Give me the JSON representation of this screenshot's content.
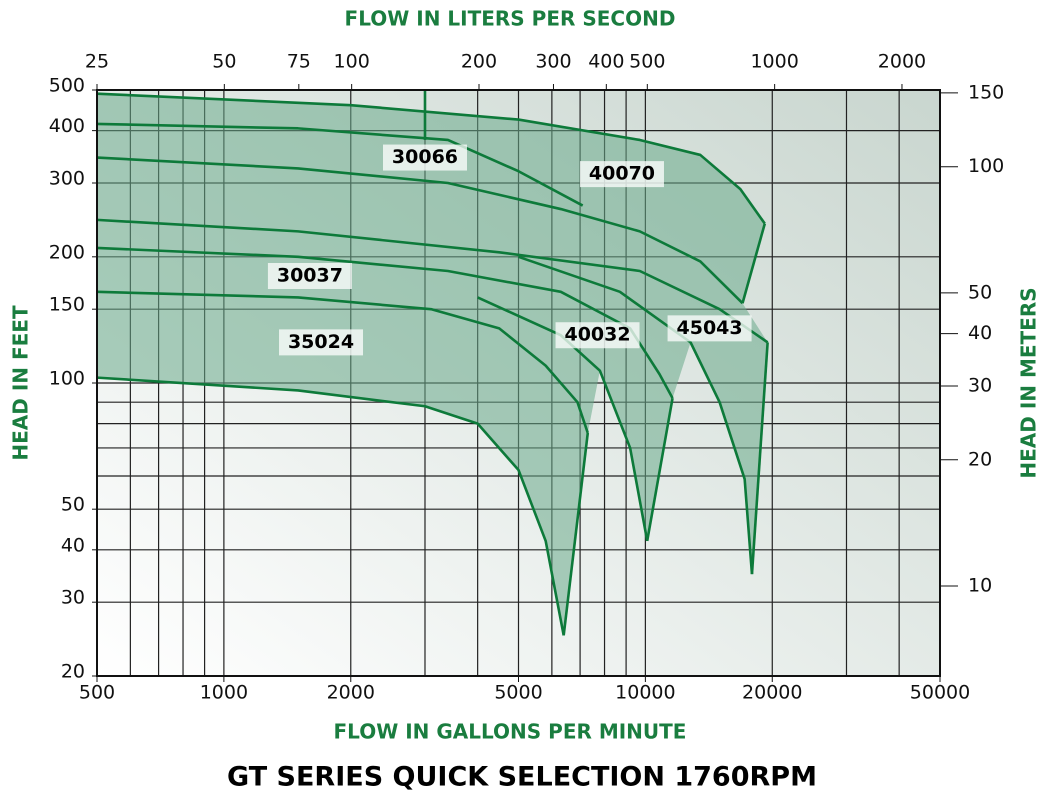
{
  "chart_data": {
    "type": "curves",
    "title": "GT SERIES QUICK SELECTION 1760RPM",
    "xlabel": "FLOW IN GALLONS PER MINUTE",
    "x2label": "FLOW IN LITERS PER SECOND",
    "ylabel": "HEAD IN FEET",
    "y2label": "HEAD IN METERS",
    "xscale": "log",
    "yscale": "log",
    "xlim": [
      500,
      50000
    ],
    "xticks": [
      500,
      1000,
      2000,
      5000,
      10000,
      20000,
      50000
    ],
    "x2lim": [
      25,
      2460
    ],
    "x2ticks": [
      25,
      50,
      75,
      100,
      200,
      300,
      400,
      500,
      1000,
      2000
    ],
    "ylim": [
      20,
      500
    ],
    "yticks": [
      20,
      30,
      40,
      50,
      100,
      150,
      200,
      300,
      400,
      500
    ],
    "y2lim": [
      6.1,
      152.4
    ],
    "y2ticks": [
      10,
      20,
      30,
      40,
      50,
      100,
      150
    ],
    "grid": true,
    "grid_x": [
      600,
      700,
      800,
      900,
      1000,
      2000,
      3000,
      4000,
      5000,
      6000,
      7000,
      8000,
      9000,
      10000,
      20000,
      30000,
      40000
    ],
    "grid_y": [
      30,
      40,
      50,
      60,
      70,
      80,
      90,
      100,
      150,
      200,
      300,
      400
    ],
    "line_color": "#0d7a3a",
    "fill_color": "#6aa98a",
    "text_color": "#1a7d3f",
    "envelope": [
      [
        500,
        490
      ],
      [
        2000,
        460
      ],
      [
        5000,
        425
      ],
      [
        9700,
        380
      ],
      [
        13500,
        350
      ],
      [
        16800,
        290
      ],
      [
        19200,
        240
      ],
      [
        17000,
        155
      ],
      [
        19500,
        125
      ],
      [
        17900,
        35
      ],
      [
        17200,
        59
      ],
      [
        15000,
        90
      ],
      [
        12800,
        125
      ],
      [
        11600,
        92
      ],
      [
        10100,
        42
      ],
      [
        9200,
        70
      ],
      [
        7800,
        107
      ],
      [
        7300,
        76
      ],
      [
        6400,
        25
      ],
      [
        5800,
        42
      ],
      [
        5000,
        62
      ],
      [
        4000,
        80
      ],
      [
        3000,
        88
      ],
      [
        1500,
        96
      ],
      [
        500,
        103
      ]
    ],
    "curves": [
      {
        "points": [
          [
            500,
            490
          ],
          [
            2000,
            460
          ],
          [
            5000,
            425
          ],
          [
            9700,
            380
          ],
          [
            13500,
            350
          ],
          [
            16800,
            290
          ],
          [
            19200,
            240
          ]
        ]
      },
      {
        "points": [
          [
            500,
            415
          ],
          [
            1500,
            405
          ],
          [
            3400,
            380
          ],
          [
            5000,
            320
          ],
          [
            7100,
            265
          ]
        ]
      },
      {
        "points": [
          [
            500,
            345
          ],
          [
            1500,
            325
          ],
          [
            3400,
            300
          ],
          [
            6300,
            260
          ],
          [
            9700,
            230
          ],
          [
            13500,
            195
          ],
          [
            17000,
            155
          ]
        ]
      },
      {
        "points": [
          [
            19200,
            240
          ],
          [
            17000,
            155
          ]
        ]
      },
      {
        "points": [
          [
            500,
            245
          ],
          [
            1500,
            230
          ],
          [
            4500,
            205
          ],
          [
            9700,
            185
          ],
          [
            15000,
            150
          ],
          [
            19500,
            125
          ]
        ]
      },
      {
        "points": [
          [
            500,
            210
          ],
          [
            1500,
            200
          ],
          [
            3400,
            185
          ],
          [
            6300,
            165
          ],
          [
            9200,
            135
          ],
          [
            10800,
            105
          ],
          [
            11600,
            92
          ]
        ]
      },
      {
        "points": [
          [
            500,
            165
          ],
          [
            1500,
            160
          ],
          [
            3100,
            150
          ],
          [
            4500,
            135
          ],
          [
            5800,
            110
          ],
          [
            6900,
            90
          ],
          [
            7300,
            76
          ]
        ]
      },
      {
        "points": [
          [
            500,
            103
          ],
          [
            1500,
            96
          ],
          [
            3000,
            88
          ],
          [
            4000,
            80
          ],
          [
            5000,
            62
          ],
          [
            5800,
            42
          ],
          [
            6400,
            25
          ]
        ]
      },
      {
        "points": [
          [
            6400,
            25
          ],
          [
            7300,
            76
          ]
        ]
      },
      {
        "points": [
          [
            4000,
            160
          ],
          [
            6300,
            130
          ],
          [
            7800,
            107
          ],
          [
            9200,
            70
          ],
          [
            10100,
            42
          ]
        ]
      },
      {
        "points": [
          [
            10100,
            42
          ],
          [
            11600,
            92
          ]
        ]
      },
      {
        "points": [
          [
            5000,
            200
          ],
          [
            8700,
            165
          ],
          [
            12800,
            125
          ],
          [
            15000,
            90
          ],
          [
            17200,
            59
          ],
          [
            17900,
            35
          ]
        ]
      },
      {
        "points": [
          [
            17900,
            35
          ],
          [
            19500,
            125
          ]
        ]
      },
      {
        "points": [
          [
            3000,
            500
          ],
          [
            3000,
            380
          ]
        ]
      }
    ],
    "annotations": [
      {
        "text": "30066",
        "x": 3000,
        "y": 345
      },
      {
        "text": "40070",
        "x": 8800,
        "y": 315
      },
      {
        "text": "30037",
        "x": 1600,
        "y": 180
      },
      {
        "text": "35024",
        "x": 1700,
        "y": 125
      },
      {
        "text": "40032",
        "x": 7700,
        "y": 130
      },
      {
        "text": "45043",
        "x": 14200,
        "y": 135
      }
    ]
  }
}
